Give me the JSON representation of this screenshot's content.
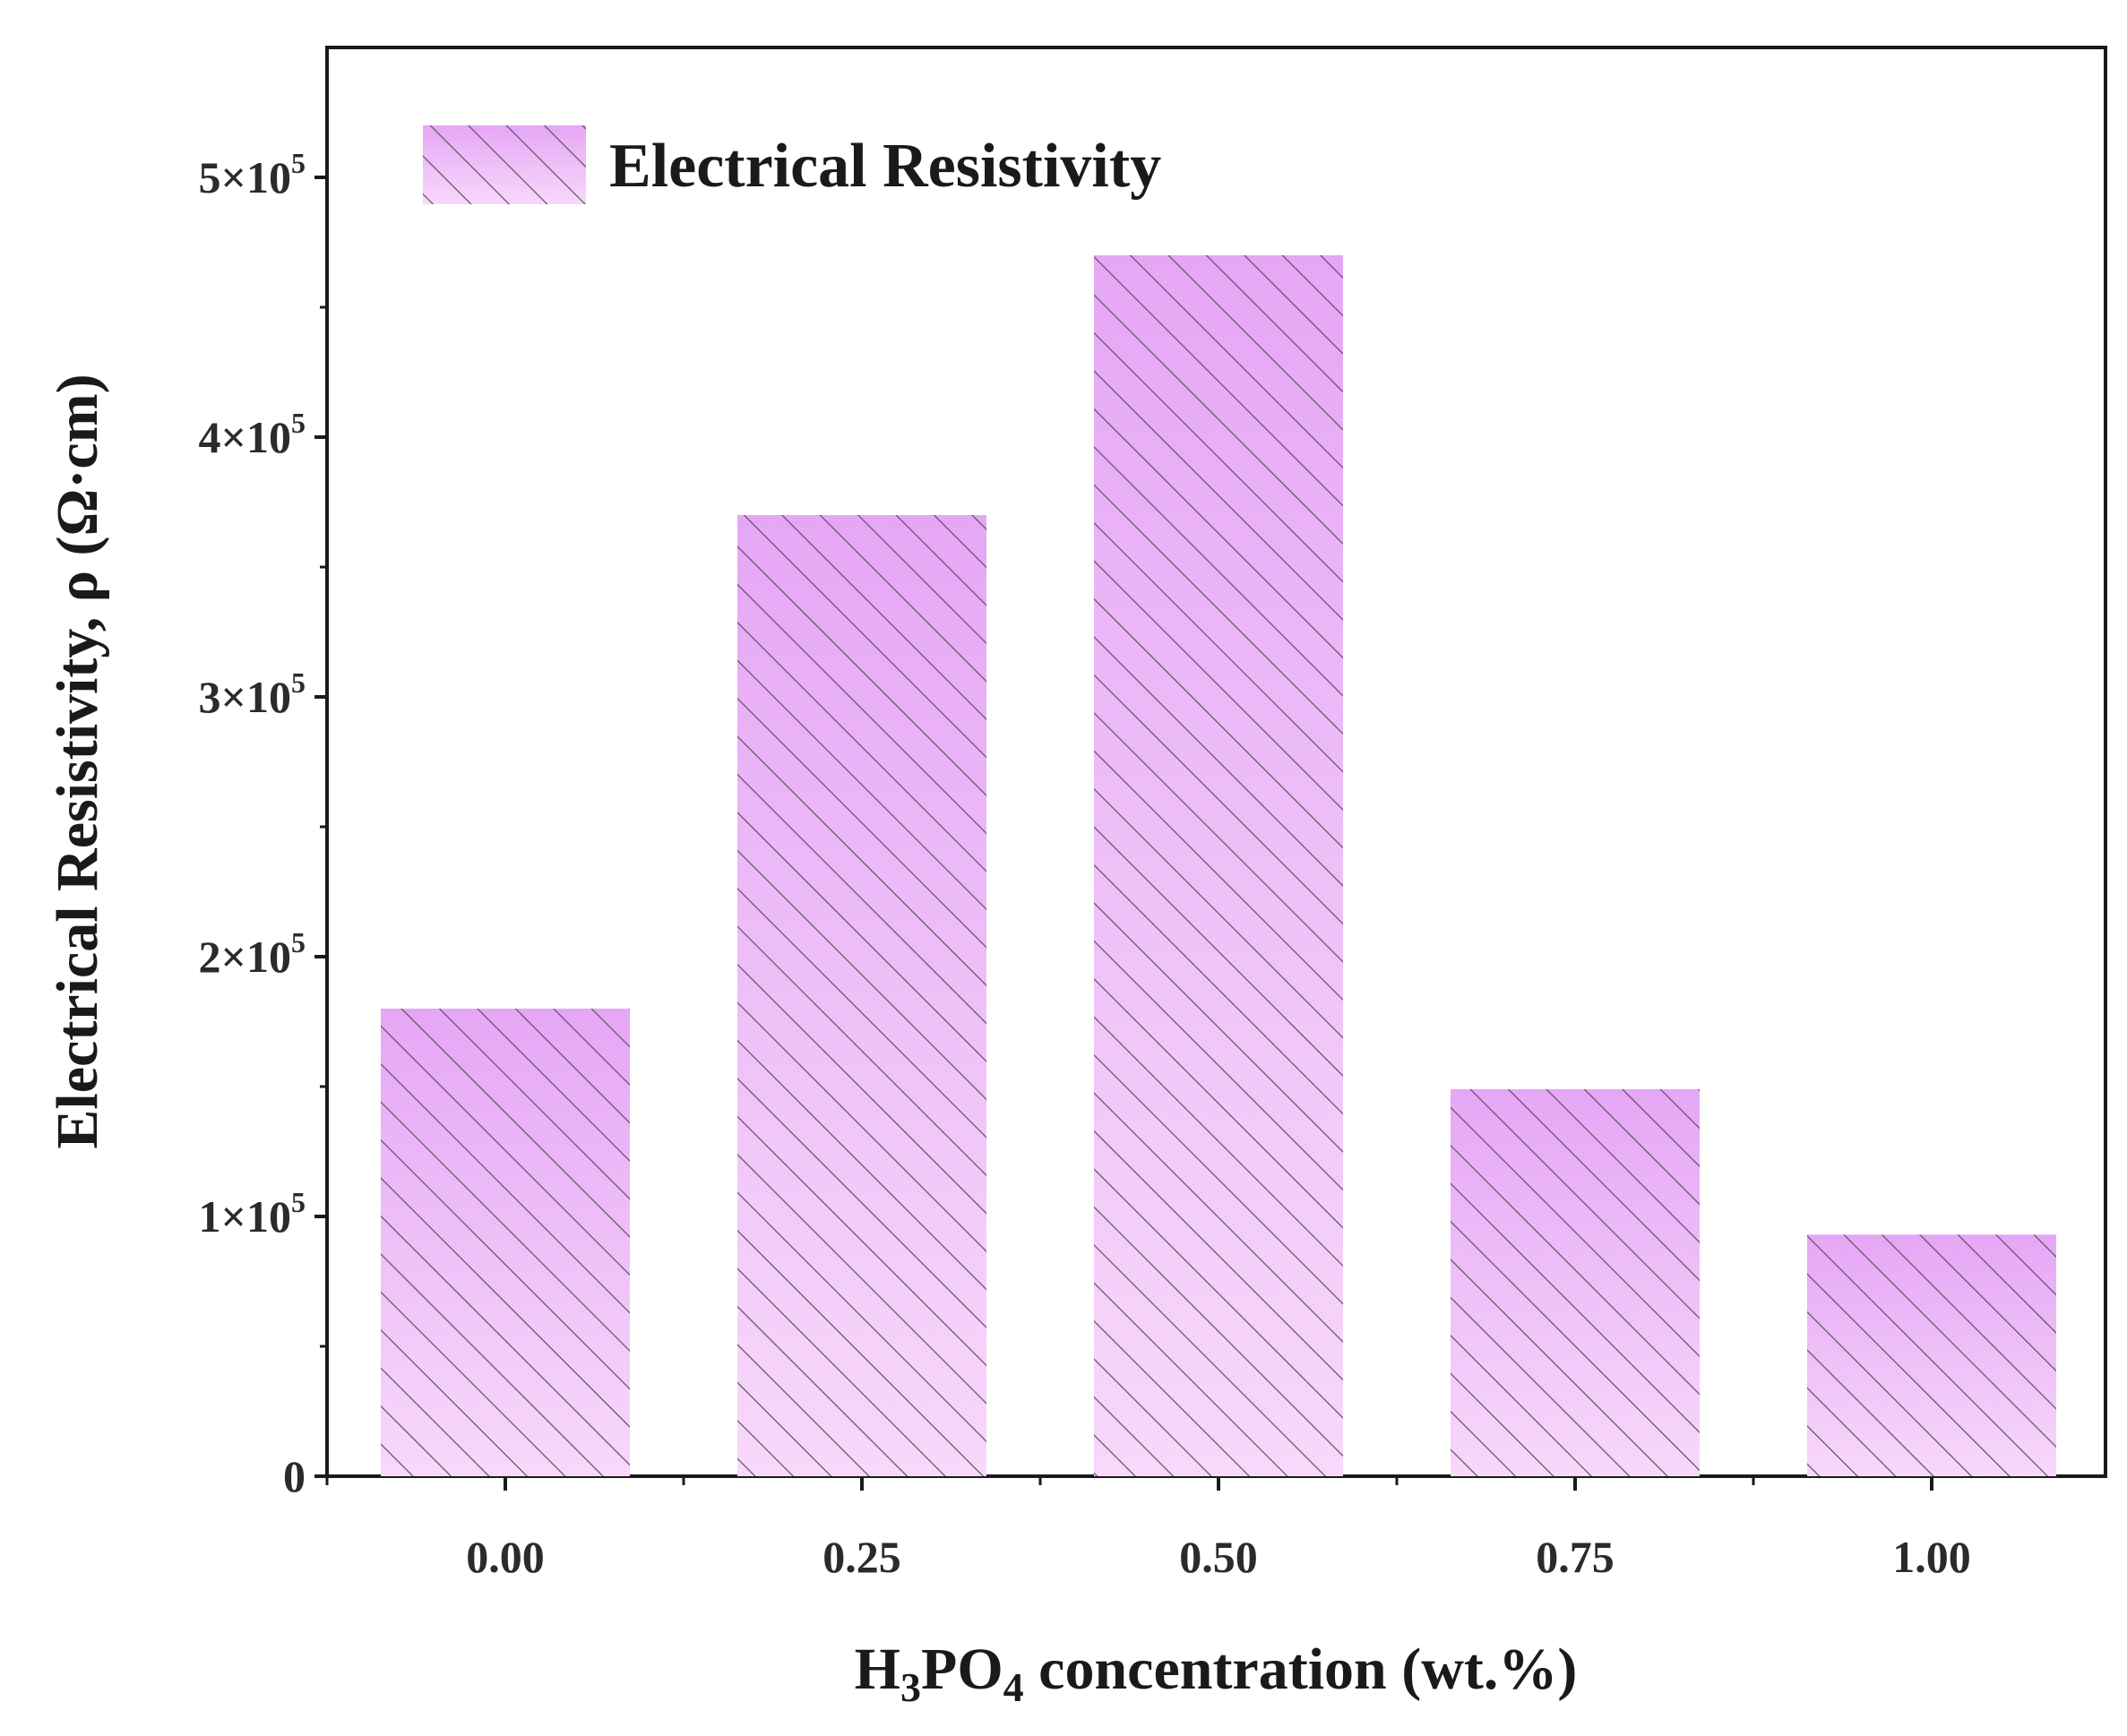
{
  "chart_data": {
    "type": "bar",
    "categories": [
      "0.00",
      "0.25",
      "0.50",
      "0.75",
      "1.00"
    ],
    "series": [
      {
        "name": "Electrical Resistivity",
        "values": [
          180000,
          370000,
          470000,
          149000,
          93000
        ]
      }
    ],
    "xlabel": {
      "base": "H",
      "sub1": "3",
      "mid": "PO",
      "sub2": "4",
      "rest": " concentration (wt.%)"
    },
    "ylabel": "Electrical Resistivity, ρ (Ω·cm)",
    "ylim": [
      0,
      550000
    ],
    "yticks": [
      {
        "value": 0,
        "mantissa": "0",
        "times": "",
        "base": "",
        "exp": ""
      },
      {
        "value": 100000,
        "mantissa": "1",
        "times": "×",
        "base": "10",
        "exp": "5"
      },
      {
        "value": 200000,
        "mantissa": "2",
        "times": "×",
        "base": "10",
        "exp": "5"
      },
      {
        "value": 300000,
        "mantissa": "3",
        "times": "×",
        "base": "10",
        "exp": "5"
      },
      {
        "value": 400000,
        "mantissa": "4",
        "times": "×",
        "base": "10",
        "exp": "5"
      },
      {
        "value": 500000,
        "mantissa": "5",
        "times": "×",
        "base": "10",
        "exp": "5"
      }
    ],
    "legend": {
      "label": "Electrical Resistivity",
      "position": "top-left"
    },
    "grid": false,
    "colors": {
      "bar_top": "#e6a6f6",
      "bar_bottom": "#f8d8fb",
      "hatch": "#555555",
      "axis": "#1a1a1a"
    }
  }
}
